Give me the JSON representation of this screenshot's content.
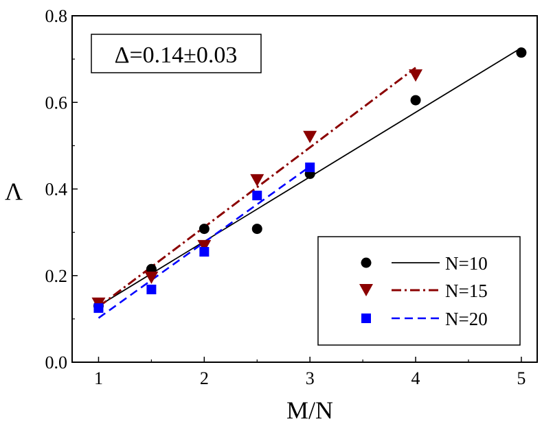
{
  "chart_data": {
    "type": "scatter",
    "title": "",
    "xlabel": "M/N",
    "ylabel": "Λ",
    "xlim": [
      0.75,
      5.15
    ],
    "ylim": [
      0.0,
      0.8
    ],
    "x_ticks": [
      1,
      2,
      3,
      4,
      5
    ],
    "y_ticks": [
      0.0,
      0.2,
      0.4,
      0.6,
      0.8
    ],
    "x_tick_labels": [
      "1",
      "2",
      "3",
      "4",
      "5"
    ],
    "y_tick_labels": [
      "0.0",
      "0.2",
      "0.4",
      "0.6",
      "0.8"
    ],
    "grid": false,
    "legend_position": "bottom-right",
    "annotation": "Δ=0.14±0.03",
    "series": [
      {
        "name": "N=10",
        "marker": "circle",
        "color": "#000000",
        "line_style": "solid",
        "x": [
          1,
          1.5,
          2,
          2.5,
          3,
          4,
          5
        ],
        "y": [
          0.13,
          0.215,
          0.308,
          0.308,
          0.435,
          0.605,
          0.715
        ],
        "fit": {
          "x": [
            1,
            5
          ],
          "y": [
            0.13,
            0.726
          ]
        }
      },
      {
        "name": "N=15",
        "marker": "triangle-down",
        "color": "#8b0000",
        "line_style": "dash-dot",
        "x": [
          1,
          1.5,
          2,
          2.5,
          3,
          4
        ],
        "y": [
          0.135,
          0.195,
          0.268,
          0.42,
          0.52,
          0.662
        ],
        "fit": {
          "x": [
            1,
            4
          ],
          "y": [
            0.128,
            0.68
          ]
        }
      },
      {
        "name": "N=20",
        "marker": "square",
        "color": "#0000ff",
        "line_style": "dashed",
        "x": [
          1,
          1.5,
          2,
          2.5,
          3
        ],
        "y": [
          0.125,
          0.168,
          0.255,
          0.385,
          0.45
        ],
        "fit": {
          "x": [
            1,
            3
          ],
          "y": [
            0.102,
            0.452
          ]
        }
      }
    ]
  }
}
